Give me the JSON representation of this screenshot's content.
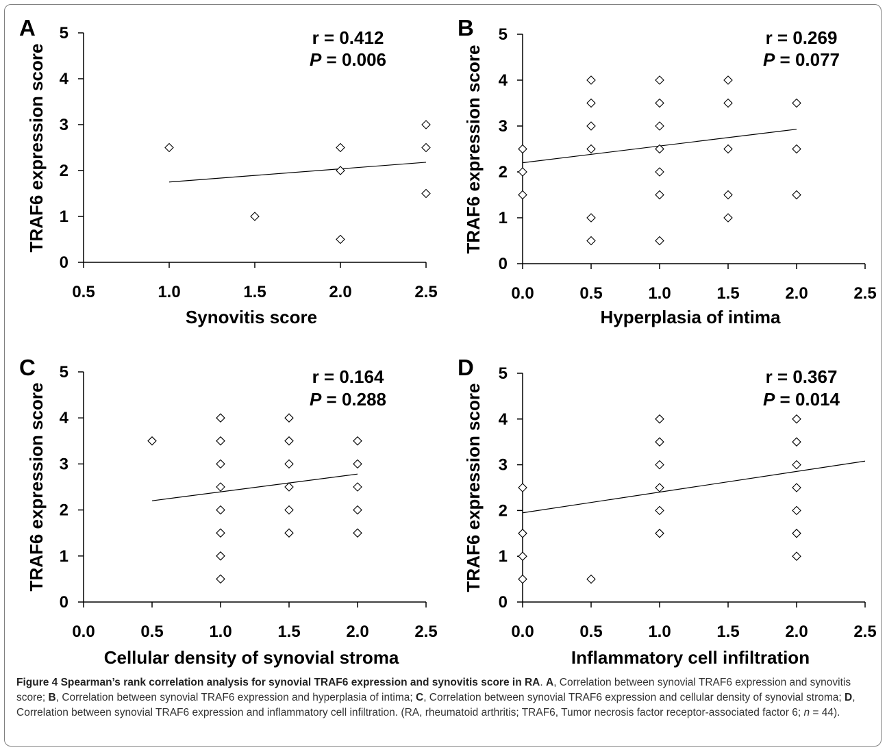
{
  "colors": {
    "ink": "#000000",
    "caption_text": "#333333",
    "border": "#7f7f7f"
  },
  "chart_data": [
    {
      "panel": "A",
      "type": "scatter",
      "xlabel": "Synovitis score",
      "ylabel": "TRAF6 expression score",
      "xlim": [
        0.5,
        2.5
      ],
      "ylim": [
        0,
        5
      ],
      "xticks": [
        "0.5",
        "1.0",
        "1.5",
        "2.0",
        "2.5"
      ],
      "yticks": [
        "0",
        "1",
        "2",
        "3",
        "4",
        "5"
      ],
      "stat_r": "r = 0.412",
      "stat_p_label": "P",
      "stat_p_value": " = 0.006",
      "points": [
        [
          1.0,
          2.5
        ],
        [
          1.5,
          1.0
        ],
        [
          2.0,
          2.5
        ],
        [
          2.0,
          2.0
        ],
        [
          2.0,
          0.5
        ],
        [
          2.5,
          3.0
        ],
        [
          2.5,
          2.5
        ],
        [
          2.5,
          1.5
        ]
      ],
      "trendline": [
        [
          1.0,
          1.75
        ],
        [
          2.5,
          2.18
        ]
      ],
      "grid": false,
      "marker": "open-diamond"
    },
    {
      "panel": "B",
      "type": "scatter",
      "xlabel": "Hyperplasia of intima",
      "ylabel": "TRAF6 expression score",
      "xlim": [
        0,
        2.5
      ],
      "ylim": [
        0,
        5
      ],
      "xticks": [
        "0.0",
        "0.5",
        "1.0",
        "1.5",
        "2.0",
        "2.5"
      ],
      "yticks": [
        "0",
        "1",
        "2",
        "3",
        "4",
        "5"
      ],
      "stat_r": "r = 0.269",
      "stat_p_label": "P",
      "stat_p_value": " = 0.077",
      "points": [
        [
          0,
          2.5
        ],
        [
          0,
          2.0
        ],
        [
          0,
          1.5
        ],
        [
          0.5,
          4.0
        ],
        [
          0.5,
          3.5
        ],
        [
          0.5,
          3.0
        ],
        [
          0.5,
          2.5
        ],
        [
          0.5,
          1.0
        ],
        [
          0.5,
          0.5
        ],
        [
          1.0,
          4.0
        ],
        [
          1.0,
          3.5
        ],
        [
          1.0,
          3.0
        ],
        [
          1.0,
          2.5
        ],
        [
          1.0,
          2.0
        ],
        [
          1.0,
          1.5
        ],
        [
          1.0,
          0.5
        ],
        [
          1.5,
          4.0
        ],
        [
          1.5,
          3.5
        ],
        [
          1.5,
          2.5
        ],
        [
          1.5,
          1.5
        ],
        [
          1.5,
          1.0
        ],
        [
          2.0,
          3.5
        ],
        [
          2.0,
          2.5
        ],
        [
          2.0,
          1.5
        ]
      ],
      "trendline": [
        [
          0,
          2.2
        ],
        [
          2.0,
          2.93
        ]
      ],
      "grid": false,
      "marker": "open-diamond"
    },
    {
      "panel": "C",
      "type": "scatter",
      "xlabel": "Cellular density of synovial stroma",
      "ylabel": "TRAF6 expression score",
      "xlim": [
        0,
        2.5
      ],
      "ylim": [
        0,
        5
      ],
      "xticks": [
        "0.0",
        "0.5",
        "1.0",
        "1.5",
        "2.0",
        "2.5"
      ],
      "yticks": [
        "0",
        "1",
        "2",
        "3",
        "4",
        "5"
      ],
      "stat_r": "r = 0.164",
      "stat_p_label": "P",
      "stat_p_value": " = 0.288",
      "points": [
        [
          0.5,
          3.5
        ],
        [
          1.0,
          4.0
        ],
        [
          1.0,
          3.5
        ],
        [
          1.0,
          3.0
        ],
        [
          1.0,
          2.5
        ],
        [
          1.0,
          2.0
        ],
        [
          1.0,
          1.5
        ],
        [
          1.0,
          1.0
        ],
        [
          1.0,
          0.5
        ],
        [
          1.5,
          4.0
        ],
        [
          1.5,
          3.5
        ],
        [
          1.5,
          3.0
        ],
        [
          1.5,
          2.5
        ],
        [
          1.5,
          2.0
        ],
        [
          1.5,
          1.5
        ],
        [
          2.0,
          3.5
        ],
        [
          2.0,
          3.0
        ],
        [
          2.0,
          2.5
        ],
        [
          2.0,
          2.0
        ],
        [
          2.0,
          1.5
        ]
      ],
      "trendline": [
        [
          0.5,
          2.2
        ],
        [
          2.0,
          2.78
        ]
      ],
      "grid": false,
      "marker": "open-diamond"
    },
    {
      "panel": "D",
      "type": "scatter",
      "xlabel": "Inflammatory cell infiltration",
      "ylabel": "TRAF6 expression score",
      "xlim": [
        0,
        2.5
      ],
      "ylim": [
        0,
        5
      ],
      "xticks": [
        "0.0",
        "0.5",
        "1.0",
        "1.5",
        "2.0",
        "2.5"
      ],
      "yticks": [
        "0",
        "1",
        "2",
        "3",
        "4",
        "5"
      ],
      "stat_r": "r = 0.367",
      "stat_p_label": "P",
      "stat_p_value": " = 0.014",
      "points": [
        [
          0,
          2.5
        ],
        [
          0,
          1.5
        ],
        [
          0,
          1.0
        ],
        [
          0,
          0.5
        ],
        [
          0.5,
          0.5
        ],
        [
          1.0,
          4.0
        ],
        [
          1.0,
          3.5
        ],
        [
          1.0,
          3.0
        ],
        [
          1.0,
          2.5
        ],
        [
          1.0,
          2.0
        ],
        [
          1.0,
          1.5
        ],
        [
          2.0,
          4.0
        ],
        [
          2.0,
          3.5
        ],
        [
          2.0,
          3.0
        ],
        [
          2.0,
          2.5
        ],
        [
          2.0,
          2.0
        ],
        [
          2.0,
          1.5
        ],
        [
          2.0,
          1.0
        ]
      ],
      "trendline": [
        [
          0,
          1.95
        ],
        [
          2.5,
          3.08
        ]
      ],
      "grid": false,
      "marker": "open-diamond"
    }
  ],
  "caption": {
    "title": "Figure 4 Spearman’s rank correlation analysis for synovial TRAF6 expression and synovitis score in RA",
    "title_end": ". ",
    "a_key": "A",
    "a_text": ", Correlation between synovial TRAF6 expression and synovitis score; ",
    "b_key": "B",
    "b_text": ", Correlation between synovial TRAF6 expression and hyperplasia of intima; ",
    "c_key": "C",
    "c_text": ", Correlation between synovial TRAF6 expression and cellular density of synovial stroma; ",
    "d_key": "D",
    "d_text": ", Correlation between synovial TRAF6 expression and inflammatory cell infiltration. (RA, rheumatoid arthritis; TRAF6, Tumor necrosis factor receptor-associated factor 6; ",
    "n_label": "n",
    "n_text": " = 44)."
  }
}
